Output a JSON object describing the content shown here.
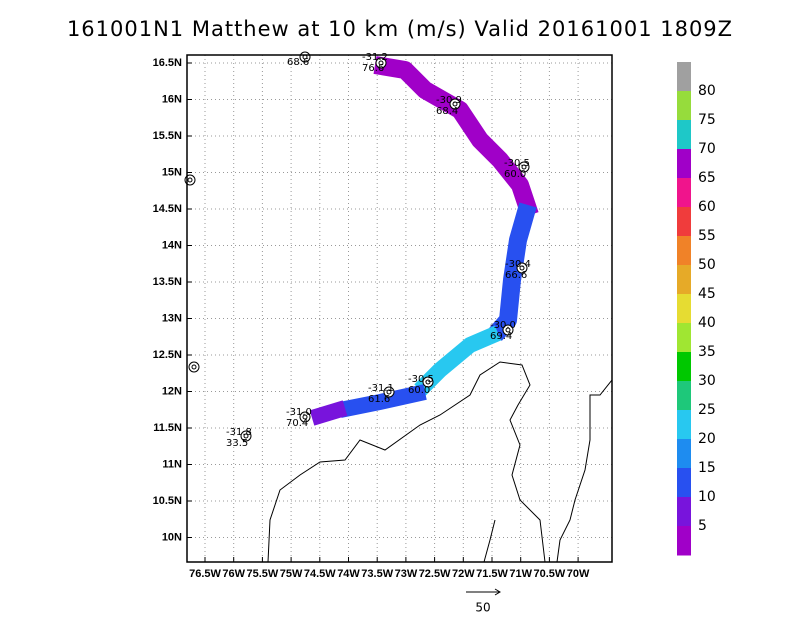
{
  "title": "161001N1 Matthew at 10 km (m/s) Valid 20161001 1809Z",
  "lon_labels": [
    "76.5W",
    "76W",
    "75.5W",
    "75W",
    "74.5W",
    "74W",
    "73.5W",
    "73W",
    "72.5W",
    "72W",
    "71.5W",
    "71W",
    "70.5W",
    "70W"
  ],
  "lat_labels": [
    "16.5N",
    "16N",
    "15.5N",
    "15N",
    "14.5N",
    "14N",
    "13.5N",
    "13N",
    "12.5N",
    "12N",
    "11.5N",
    "11N",
    "10.5N",
    "10N"
  ],
  "colorbar": {
    "labels": [
      80,
      75,
      70,
      65,
      60,
      55,
      50,
      45,
      40,
      35,
      30,
      25,
      20,
      15,
      10,
      5
    ],
    "colors": [
      "#a0a0a0",
      "#96dc3c",
      "#1ec8c8",
      "#a000c8",
      "#f0148c",
      "#f03c3c",
      "#f08228",
      "#e6aa28",
      "#e6dc32",
      "#a0e632",
      "#00c800",
      "#1ec87a",
      "#28c8f0",
      "#1e8cf0",
      "#2850f0",
      "#7814dc",
      "#a000c8"
    ]
  },
  "storm_labels": [
    [
      "-31.2",
      "76.6"
    ],
    [
      "68.6"
    ],
    [
      "-30.9",
      "68.4"
    ],
    [
      "-30.5",
      "60.0"
    ],
    [
      "-30.4",
      "66.6"
    ],
    [
      "-30.0",
      "69.4"
    ],
    [
      "-30.5",
      "60.0"
    ],
    [
      "-31.1",
      "61.6"
    ],
    [
      "-31.0",
      "70.4"
    ],
    [
      "-31.8",
      "33.5"
    ]
  ],
  "scale_label": "50"
}
